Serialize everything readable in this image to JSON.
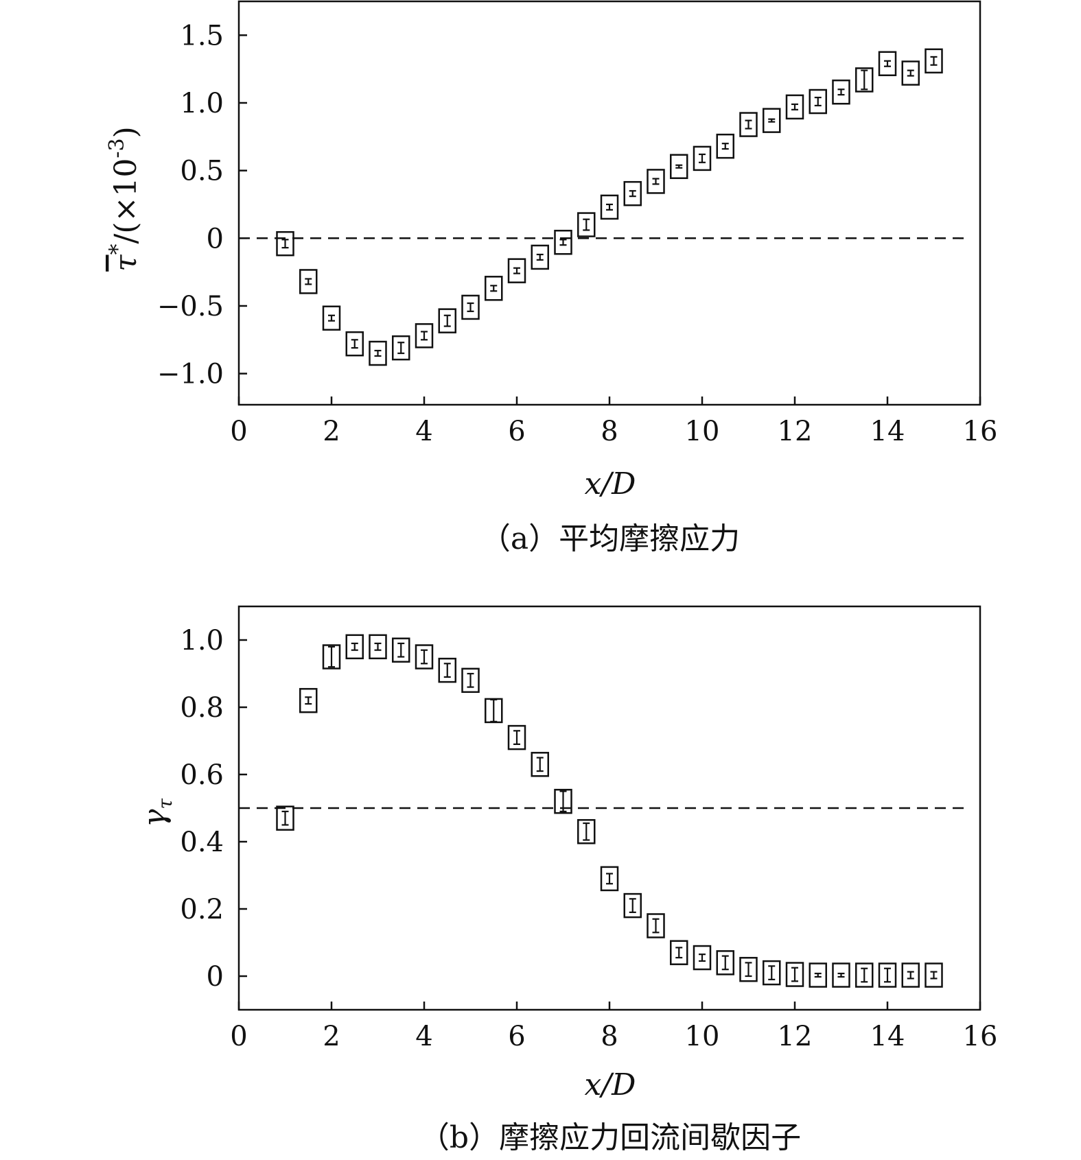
{
  "chart_data": [
    {
      "type": "scatter",
      "panel": "a",
      "caption": "（a）平均摩擦应力",
      "xlabel": "x/D",
      "ylabel_main": "τ",
      "ylabel_sup": "*",
      "ylabel_rest": "/(×10",
      "ylabel_exp": "-3",
      "ylabel_close": ")",
      "xlim": [
        0,
        16
      ],
      "ylim": [
        -1.23,
        1.75
      ],
      "xticks": [
        0,
        2,
        4,
        6,
        8,
        10,
        12,
        14,
        16
      ],
      "xtick_labels": [
        "0",
        "2",
        "4",
        "6",
        "8",
        "10",
        "12",
        "14",
        "16"
      ],
      "yticks": [
        -1.0,
        -0.5,
        0,
        0.5,
        1.0,
        1.5
      ],
      "ytick_labels": [
        "−1.0",
        "−0.5",
        "0",
        "0.5",
        "1.0",
        "1.5"
      ],
      "reference_line_y": 0,
      "marker": "square",
      "x": [
        1.0,
        1.5,
        2.0,
        2.5,
        3.0,
        3.5,
        4.0,
        4.5,
        5.0,
        5.5,
        6.0,
        6.5,
        7.0,
        7.5,
        8.0,
        8.5,
        9.0,
        9.5,
        10.0,
        10.5,
        11.0,
        11.5,
        12.0,
        12.5,
        13.0,
        13.5,
        14.0,
        14.5,
        15.0
      ],
      "y": [
        -0.04,
        -0.32,
        -0.59,
        -0.78,
        -0.85,
        -0.81,
        -0.72,
        -0.61,
        -0.51,
        -0.37,
        -0.24,
        -0.14,
        -0.03,
        0.1,
        0.23,
        0.33,
        0.42,
        0.53,
        0.59,
        0.68,
        0.84,
        0.87,
        0.97,
        1.01,
        1.08,
        1.17,
        1.29,
        1.22,
        1.31
      ],
      "error": [
        0.03,
        0.02,
        0.02,
        0.03,
        0.02,
        0.04,
        0.03,
        0.04,
        0.03,
        0.02,
        0.02,
        0.02,
        0.02,
        0.04,
        0.02,
        0.02,
        0.02,
        0.01,
        0.03,
        0.02,
        0.03,
        0.01,
        0.02,
        0.03,
        0.02,
        0.07,
        0.02,
        0.02,
        0.03
      ]
    },
    {
      "type": "scatter",
      "panel": "b",
      "caption": "（b）摩擦应力回流间歇因子",
      "xlabel": "x/D",
      "ylabel_main": "γ",
      "ylabel_sub": "τ",
      "xlim": [
        0,
        16
      ],
      "ylim": [
        -0.1,
        1.1
      ],
      "xticks": [
        0,
        2,
        4,
        6,
        8,
        10,
        12,
        14,
        16
      ],
      "xtick_labels": [
        "0",
        "2",
        "4",
        "6",
        "8",
        "10",
        "12",
        "14",
        "16"
      ],
      "yticks": [
        0,
        0.2,
        0.4,
        0.6,
        0.8,
        1.0
      ],
      "ytick_labels": [
        "0",
        "0.2",
        "0.4",
        "0.6",
        "0.8",
        "1.0"
      ],
      "reference_line_y": 0.5,
      "marker": "square",
      "x": [
        1.0,
        1.5,
        2.0,
        2.5,
        3.0,
        3.5,
        4.0,
        4.5,
        5.0,
        5.5,
        6.0,
        6.5,
        7.0,
        7.5,
        8.0,
        8.5,
        9.0,
        9.5,
        10.0,
        10.5,
        11.0,
        11.5,
        12.0,
        12.5,
        13.0,
        13.5,
        14.0,
        14.5,
        15.0
      ],
      "y": [
        0.47,
        0.82,
        0.95,
        0.98,
        0.98,
        0.97,
        0.95,
        0.91,
        0.88,
        0.79,
        0.71,
        0.63,
        0.52,
        0.43,
        0.29,
        0.21,
        0.15,
        0.07,
        0.055,
        0.04,
        0.02,
        0.01,
        0.005,
        0.003,
        0.003,
        0.003,
        0.003,
        0.003,
        0.003
      ],
      "error": [
        0.02,
        0.01,
        0.03,
        0.01,
        0.01,
        0.02,
        0.02,
        0.02,
        0.02,
        0.035,
        0.02,
        0.02,
        0.03,
        0.025,
        0.015,
        0.02,
        0.02,
        0.015,
        0.01,
        0.02,
        0.02,
        0.02,
        0.02,
        0.005,
        0.005,
        0.02,
        0.02,
        0.01,
        0.01
      ]
    }
  ]
}
